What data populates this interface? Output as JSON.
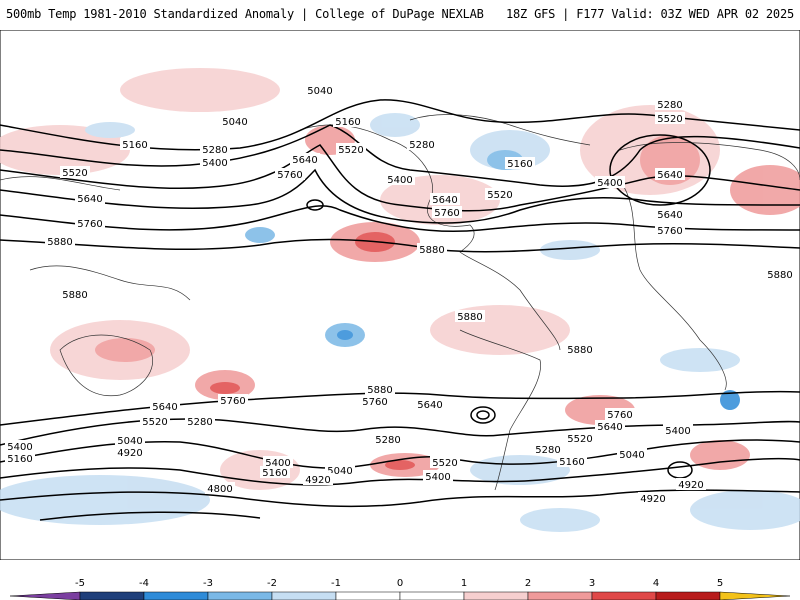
{
  "header": {
    "left_title": "500mb Temp 1981-2010 Standardized Anomaly | College of DuPage NEXLAB",
    "right_title": "18Z GFS | F177 Valid: 03Z WED APR 02 2025"
  },
  "contour_labels": [
    "5040",
    "5160",
    "5280",
    "5400",
    "5520",
    "5640",
    "5760",
    "5880",
    "4920",
    "4800"
  ],
  "colorbar": {
    "ticks": [
      "-5",
      "-4",
      "-3",
      "-2",
      "-1",
      "0",
      "1",
      "2",
      "3",
      "4",
      "5"
    ],
    "colors": {
      "m5": "#7b3fa0",
      "m4": "#1f3f7a",
      "m3": "#2e8bd8",
      "m2": "#7ab8e6",
      "m1": "#c6def2",
      "zero": "#ffffff",
      "p1": "#f6cfcf",
      "p2": "#ef9a9a",
      "p3": "#e04848",
      "p4": "#b81c1c",
      "p5": "#7a0a0a",
      "tip": "#f3c21a"
    }
  }
}
